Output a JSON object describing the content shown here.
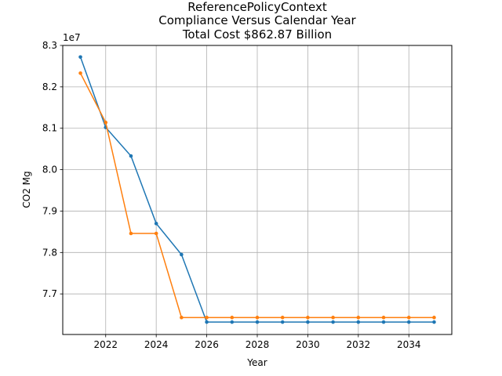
{
  "chart_data": {
    "type": "line",
    "title_lines": [
      "ReferencePolicyContext",
      "Compliance Versus Calendar Year",
      "Total Cost $862.87 Billion"
    ],
    "xlabel": "Year",
    "ylabel": "CO2 Mg",
    "y_offset_label": "1e7",
    "y_multiplier": 10000000,
    "xlim": [
      2020.3,
      2035.7
    ],
    "ylim": [
      7.602,
      8.3
    ],
    "x_ticks": [
      2022,
      2024,
      2026,
      2028,
      2030,
      2032,
      2034
    ],
    "y_ticks": [
      7.7,
      7.8,
      7.9,
      8.0,
      8.1,
      8.2,
      8.3
    ],
    "y_tick_labels": [
      "7.7",
      "7.8",
      "7.9",
      "8.0",
      "8.1",
      "8.2",
      "8.3"
    ],
    "grid": true,
    "x": [
      2021,
      2022,
      2023,
      2024,
      2025,
      2026,
      2027,
      2028,
      2029,
      2030,
      2031,
      2032,
      2033,
      2034,
      2035
    ],
    "series": [
      {
        "color": "#1f77b4",
        "values": [
          8.272,
          8.102,
          8.033,
          7.87,
          7.795,
          7.632,
          7.632,
          7.632,
          7.632,
          7.632,
          7.632,
          7.632,
          7.632,
          7.632,
          7.632
        ]
      },
      {
        "color": "#ff7f0e",
        "values": [
          8.233,
          8.114,
          7.846,
          7.846,
          7.643,
          7.643,
          7.643,
          7.643,
          7.643,
          7.643,
          7.643,
          7.643,
          7.643,
          7.643,
          7.643
        ]
      }
    ]
  }
}
